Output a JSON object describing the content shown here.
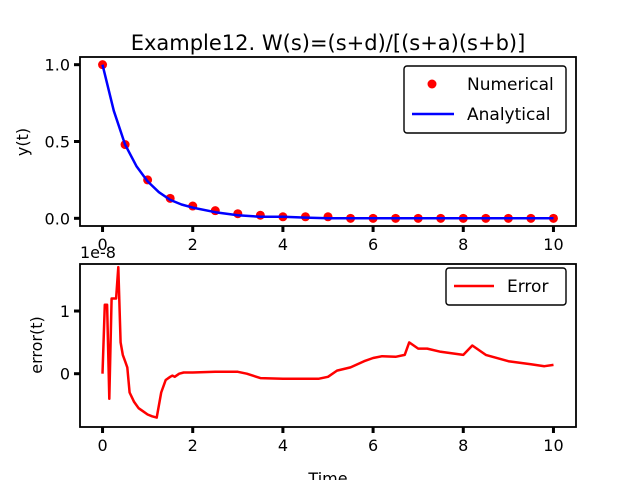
{
  "chart_data": [
    {
      "type": "line",
      "title": "Example12. W(s)=(s+d)/[(s+a)(s+b)]",
      "xlabel": "",
      "ylabel": "y(t)",
      "xlim": [
        -0.5,
        10.5
      ],
      "ylim": [
        -0.05,
        1.05
      ],
      "xticks": [
        0,
        2,
        4,
        6,
        8,
        10
      ],
      "yticks": [
        0.0,
        0.5,
        1.0
      ],
      "ytick_labels": [
        "0.0",
        "0.5",
        "1.0"
      ],
      "legend": "top-right",
      "series": [
        {
          "name": "Numerical",
          "style": "scatter",
          "color": "#ff0000",
          "x": [
            0,
            0.5,
            1.0,
            1.5,
            2.0,
            2.5,
            3.0,
            3.5,
            4.0,
            4.5,
            5.0,
            5.5,
            6.0,
            6.5,
            7.0,
            7.5,
            8.0,
            8.5,
            9.0,
            9.5,
            10.0
          ],
          "y": [
            1.0,
            0.48,
            0.25,
            0.13,
            0.08,
            0.05,
            0.03,
            0.02,
            0.01,
            0.01,
            0.01,
            0.0,
            0.0,
            0.0,
            0.0,
            0.0,
            0.0,
            0.0,
            0.0,
            0.0,
            0.0
          ]
        },
        {
          "name": "Analytical",
          "style": "line",
          "color": "#0000ff",
          "x": [
            0,
            0.25,
            0.5,
            0.75,
            1.0,
            1.25,
            1.5,
            1.75,
            2.0,
            2.5,
            3.0,
            3.5,
            4.0,
            4.5,
            5.0,
            5.5,
            6.0,
            6.5,
            7.0,
            7.5,
            8.0,
            8.5,
            9.0,
            9.5,
            10.0
          ],
          "y": [
            1.0,
            0.7,
            0.48,
            0.34,
            0.24,
            0.17,
            0.12,
            0.09,
            0.07,
            0.04,
            0.02,
            0.01,
            0.01,
            0.005,
            0.0,
            0.0,
            0.0,
            0.0,
            0.0,
            0.0,
            0.0,
            0.0,
            0.0,
            0.0,
            0.0
          ]
        }
      ]
    },
    {
      "type": "line",
      "title": "",
      "xlabel": "Time",
      "ylabel": "error(t)",
      "offset_text": "1e-8",
      "xlim": [
        -0.5,
        10.5
      ],
      "ylim": [
        -0.85,
        1.75
      ],
      "xticks": [
        0,
        2,
        4,
        6,
        8,
        10
      ],
      "yticks": [
        0,
        1
      ],
      "legend": "top-right",
      "series": [
        {
          "name": "Error",
          "style": "line",
          "color": "#ff0000",
          "x": [
            0,
            0.05,
            0.1,
            0.15,
            0.2,
            0.25,
            0.3,
            0.35,
            0.4,
            0.45,
            0.5,
            0.55,
            0.6,
            0.7,
            0.8,
            0.9,
            1.0,
            1.1,
            1.2,
            1.3,
            1.4,
            1.5,
            1.55,
            1.6,
            1.7,
            1.8,
            2.0,
            2.5,
            3.0,
            3.2,
            3.5,
            4.0,
            4.5,
            4.8,
            5.0,
            5.2,
            5.5,
            5.8,
            6.0,
            6.2,
            6.5,
            6.7,
            6.8,
            7.0,
            7.2,
            7.5,
            8.0,
            8.2,
            8.5,
            9.0,
            9.5,
            9.8,
            10.0
          ],
          "y": [
            0.0,
            1.1,
            1.1,
            -0.4,
            1.2,
            1.2,
            1.2,
            1.7,
            0.5,
            0.3,
            0.2,
            0.1,
            -0.3,
            -0.45,
            -0.55,
            -0.6,
            -0.65,
            -0.68,
            -0.7,
            -0.3,
            -0.1,
            -0.05,
            -0.03,
            -0.05,
            0.0,
            0.02,
            0.02,
            0.03,
            0.03,
            0.0,
            -0.07,
            -0.08,
            -0.08,
            -0.08,
            -0.05,
            0.05,
            0.1,
            0.2,
            0.25,
            0.28,
            0.27,
            0.3,
            0.5,
            0.4,
            0.4,
            0.35,
            0.3,
            0.45,
            0.3,
            0.2,
            0.15,
            0.12,
            0.14
          ]
        }
      ]
    }
  ]
}
